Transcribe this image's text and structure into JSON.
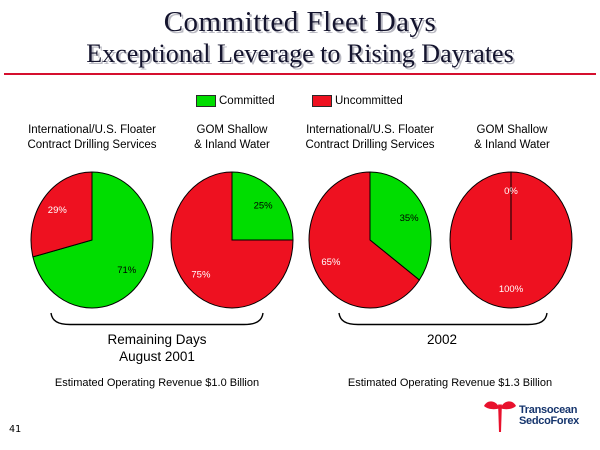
{
  "title": "Committed Fleet Days",
  "subtitle": "Exceptional Leverage to Rising Dayrates",
  "colors": {
    "committed": "#00DD00",
    "uncommitted": "#EE1120",
    "divider": "#D50F2E",
    "logo_red": "#E8112D",
    "logo_navy": "#16356D"
  },
  "legend": {
    "position": "top",
    "items": [
      {
        "label": "Committed",
        "color_key": "committed"
      },
      {
        "label": "Uncommitted",
        "color_key": "uncommitted"
      }
    ]
  },
  "chart_data": [
    {
      "type": "pie",
      "header": [
        "International/U.S. Floater",
        "Contract Drilling Services"
      ],
      "group": "Remaining Days August 2001",
      "start_angle_deg": 0,
      "clockwise": true,
      "slices": [
        {
          "name": "Committed",
          "pct": 71,
          "label": "71%",
          "color_key": "committed",
          "label_color": "#000000"
        },
        {
          "name": "Uncommitted",
          "pct": 29,
          "label": "29%",
          "color_key": "uncommitted",
          "label_color": "#ffffff"
        }
      ]
    },
    {
      "type": "pie",
      "header": [
        "GOM Shallow",
        "& Inland Water"
      ],
      "group": "Remaining Days August 2001",
      "start_angle_deg": 0,
      "clockwise": true,
      "slices": [
        {
          "name": "Committed",
          "pct": 25,
          "label": "25%",
          "color_key": "committed",
          "label_color": "#000000"
        },
        {
          "name": "Uncommitted",
          "pct": 75,
          "label": "75%",
          "color_key": "uncommitted",
          "label_color": "#ffffff"
        }
      ]
    },
    {
      "type": "pie",
      "header": [
        "International/U.S. Floater",
        "Contract Drilling Services"
      ],
      "group": "2002",
      "start_angle_deg": 0,
      "clockwise": true,
      "slices": [
        {
          "name": "Committed",
          "pct": 35,
          "label": "35%",
          "color_key": "committed",
          "label_color": "#000000"
        },
        {
          "name": "Uncommitted",
          "pct": 65,
          "label": "65%",
          "color_key": "uncommitted",
          "label_color": "#ffffff"
        }
      ]
    },
    {
      "type": "pie",
      "header": [
        "GOM Shallow",
        "& Inland Water"
      ],
      "group": "2002",
      "start_angle_deg": 0,
      "clockwise": true,
      "slices": [
        {
          "name": "Committed",
          "pct": 0,
          "label": "0%",
          "color_key": "committed",
          "label_color": "#ffffff"
        },
        {
          "name": "Uncommitted",
          "pct": 100,
          "label": "100%",
          "color_key": "uncommitted",
          "label_color": "#ffffff"
        }
      ]
    }
  ],
  "groups": [
    {
      "caption_lines": [
        "Remaining Days",
        "August 2001"
      ],
      "revenue": "Estimated Operating Revenue $1.0 Billion"
    },
    {
      "caption_lines": [
        "2002"
      ],
      "revenue": "Estimated Operating Revenue $1.3 Billion"
    }
  ],
  "logo": {
    "line1": "Transocean",
    "line2": "SedcoForex"
  },
  "footer": {
    "page_number": "41"
  }
}
